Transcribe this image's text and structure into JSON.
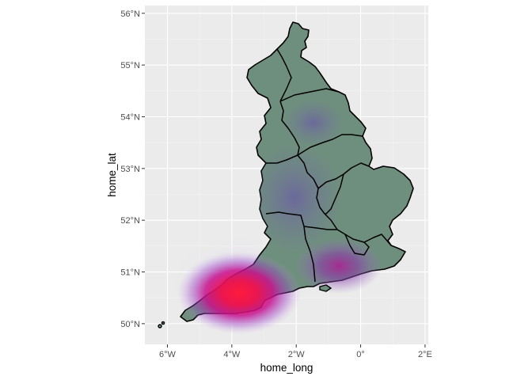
{
  "chart_data": {
    "type": "map",
    "subtype": "density-overlay",
    "region": "England",
    "xlabel": "home_long",
    "ylabel": "home_lat",
    "xlim": [
      -6.7,
      2.1
    ],
    "ylim": [
      49.6,
      56.15
    ],
    "x_ticks": [
      {
        "value": -6,
        "label": "6°W"
      },
      {
        "value": -4,
        "label": "4°W"
      },
      {
        "value": -2,
        "label": "2°W"
      },
      {
        "value": 0,
        "label": "0°"
      },
      {
        "value": 2,
        "label": "2°E"
      }
    ],
    "y_ticks": [
      {
        "value": 50,
        "label": "50°N"
      },
      {
        "value": 51,
        "label": "51°N"
      },
      {
        "value": 52,
        "label": "52°N"
      },
      {
        "value": 53,
        "label": "53°N"
      },
      {
        "value": 54,
        "label": "54°N"
      },
      {
        "value": 55,
        "label": "55°N"
      },
      {
        "value": 56,
        "label": "56°N"
      }
    ],
    "grid": true,
    "panel_background": "#ebebeb",
    "land_fill": "#6f8f7e",
    "density_low_color": "#6b4fa8",
    "density_high_color": "#ff1a3c",
    "density_hotspots": [
      {
        "long": -3.8,
        "lat": 50.5,
        "intensity": 1.0
      },
      {
        "long": -1.0,
        "lat": 51.1,
        "intensity": 0.55
      },
      {
        "long": -1.5,
        "lat": 53.8,
        "intensity": 0.3
      },
      {
        "long": -2.0,
        "lat": 52.5,
        "intensity": 0.2
      }
    ]
  }
}
